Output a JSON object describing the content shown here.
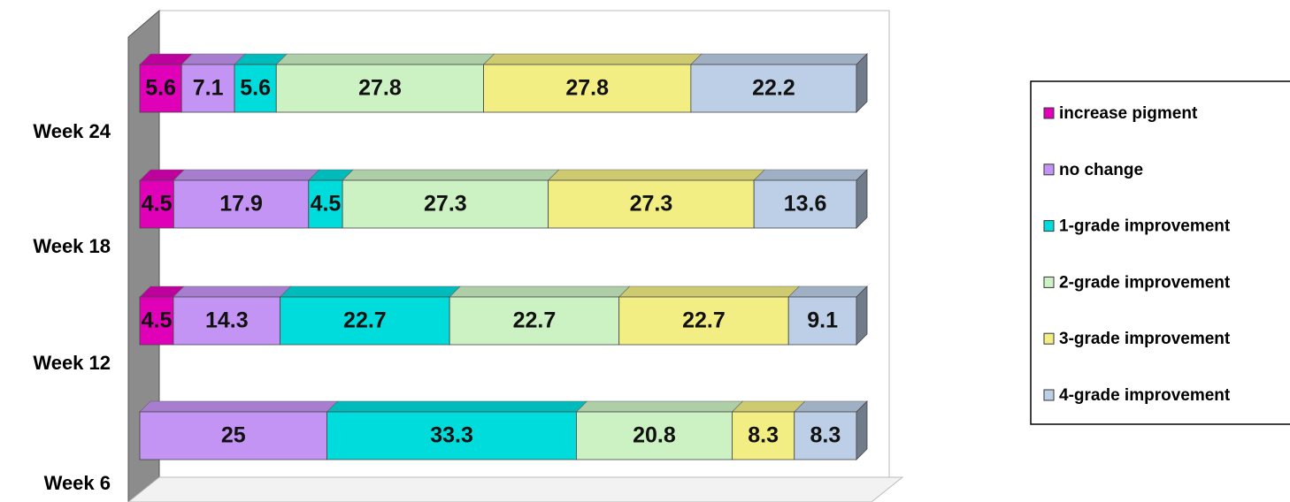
{
  "chart_data": {
    "type": "stacked-bar-horizontal",
    "categories": [
      "Week 6",
      "Week 12",
      "Week 18",
      "Week 24"
    ],
    "series": [
      {
        "name": "increase pigment",
        "color": "#e000b8",
        "values": [
          null,
          4.5,
          4.5,
          5.6
        ]
      },
      {
        "name": "no change",
        "color": "#c494f4",
        "values": [
          25,
          14.3,
          17.9,
          7.1
        ]
      },
      {
        "name": "1-grade improvement",
        "color": "#00dcdc",
        "values": [
          33.3,
          22.7,
          4.5,
          5.6
        ]
      },
      {
        "name": "2-grade improvement",
        "color": "#ccf2c4",
        "values": [
          20.8,
          22.7,
          27.3,
          27.8
        ]
      },
      {
        "name": "3-grade improvement",
        "color": "#f2ee84",
        "values": [
          8.3,
          22.7,
          27.3,
          27.8
        ]
      },
      {
        "name": "4-grade improvement",
        "color": "#bccfe6",
        "values": [
          8.3,
          9.1,
          13.6,
          22.2
        ]
      }
    ],
    "legend": "right"
  }
}
